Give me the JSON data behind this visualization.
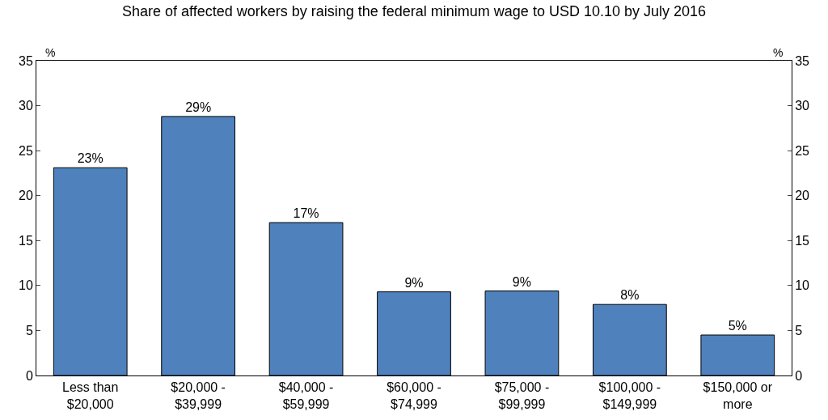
{
  "chart_data": {
    "type": "bar",
    "title": "Share of affected workers by raising the federal minimum wage to USD 10.10 by July 2016",
    "ylabel": "%",
    "y2label": "%",
    "categories": [
      "Less than $20,000",
      "$20,000 - $39,999",
      "$40,000 - $59,999",
      "$60,000 - $74,999",
      "$75,000 - $99,999",
      "$100,000 - $149,999",
      "$150,000 or more"
    ],
    "values": [
      23.1,
      28.8,
      17.0,
      9.3,
      9.4,
      7.9,
      4.5
    ],
    "value_labels": [
      "23%",
      "29%",
      "17%",
      "9%",
      "9%",
      "8%",
      "5%"
    ],
    "color": "#4f81bd",
    "ylim": [
      0,
      35
    ],
    "yticks": [
      0,
      5,
      10,
      15,
      20,
      25,
      30,
      35
    ],
    "y2lim": [
      0,
      35
    ],
    "y2ticks": [
      0,
      5,
      10,
      15,
      20,
      25,
      30,
      35
    ],
    "legend": false
  }
}
